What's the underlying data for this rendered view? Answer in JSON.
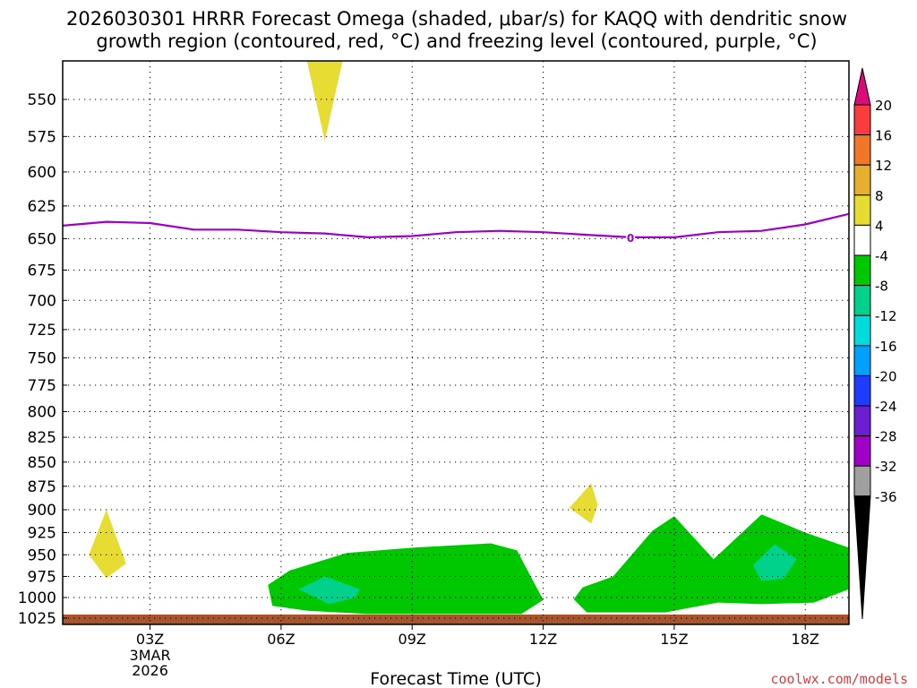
{
  "chart_data": {
    "type": "heatmap",
    "title_lines": [
      "2026030301 HRRR Forecast Omega (shaded, μbar/s) for KAQQ with dendritic snow",
      "growth region (contoured, red, °C) and freezing level (contoured, purple, °C)"
    ],
    "xlabel": "Forecast Time (UTC)",
    "credit": "coolwx.com/models",
    "x_range_hours": [
      1,
      19
    ],
    "x_ticks": [
      {
        "hour": 3,
        "label": "03Z",
        "sub": [
          "3MAR",
          "2026"
        ]
      },
      {
        "hour": 6,
        "label": "06Z"
      },
      {
        "hour": 9,
        "label": "09Z"
      },
      {
        "hour": 12,
        "label": "12Z"
      },
      {
        "hour": 15,
        "label": "15Z"
      },
      {
        "hour": 18,
        "label": "18Z"
      }
    ],
    "y_range_hpa": [
      1030,
      520
    ],
    "y_ticks": [
      550,
      575,
      600,
      625,
      650,
      675,
      700,
      725,
      750,
      775,
      800,
      825,
      850,
      875,
      900,
      925,
      950,
      975,
      1000,
      1025
    ],
    "freezing_level": {
      "color": "#9e00c8",
      "label": "0",
      "label_hour": 14,
      "points": [
        [
          1,
          640
        ],
        [
          2,
          637
        ],
        [
          3,
          638
        ],
        [
          4,
          643
        ],
        [
          5,
          643
        ],
        [
          6,
          645
        ],
        [
          7,
          646
        ],
        [
          8,
          649
        ],
        [
          9,
          648
        ],
        [
          10,
          645
        ],
        [
          11,
          644
        ],
        [
          12,
          645
        ],
        [
          13,
          647
        ],
        [
          14,
          649
        ],
        [
          15,
          649
        ],
        [
          16,
          645
        ],
        [
          17,
          644
        ],
        [
          18,
          639
        ],
        [
          19,
          631
        ]
      ]
    },
    "omega_regions": [
      {
        "value_class": "4 to 8",
        "color": "#e6dc32",
        "points": [
          [
            6.55,
            520
          ],
          [
            7.0,
            578
          ],
          [
            7.45,
            520
          ]
        ]
      },
      {
        "value_class": "4 to 8",
        "color": "#e6dc32",
        "points": [
          [
            2.0,
            900
          ],
          [
            1.6,
            950
          ],
          [
            2.0,
            977
          ],
          [
            2.45,
            960
          ]
        ]
      },
      {
        "value_class": "4 to 8",
        "color": "#e6dc32",
        "points": [
          [
            13.1,
            872
          ],
          [
            12.6,
            898
          ],
          [
            13.1,
            915
          ],
          [
            13.25,
            895
          ]
        ]
      },
      {
        "value_class": "-8 to -4",
        "color": "#00c800",
        "points": [
          [
            5.7,
            985
          ],
          [
            5.8,
            1010
          ],
          [
            6.6,
            1016
          ],
          [
            8.0,
            1020
          ],
          [
            11.5,
            1020
          ],
          [
            12.0,
            1003
          ],
          [
            11.4,
            945
          ],
          [
            10.8,
            937
          ],
          [
            9.0,
            942
          ],
          [
            7.5,
            948
          ],
          [
            6.2,
            968
          ]
        ]
      },
      {
        "value_class": "-8 to -4",
        "color": "#00c800",
        "points": [
          [
            12.7,
            1002
          ],
          [
            13.0,
            1018
          ],
          [
            14.8,
            1018
          ],
          [
            16.0,
            1006
          ],
          [
            17.0,
            1008
          ],
          [
            18.2,
            1006
          ],
          [
            19.0,
            990
          ],
          [
            19.0,
            942
          ],
          [
            18.0,
            925
          ],
          [
            17.0,
            905
          ],
          [
            15.9,
            955
          ],
          [
            15.0,
            907
          ],
          [
            14.5,
            923
          ],
          [
            13.6,
            975
          ],
          [
            12.9,
            988
          ]
        ]
      },
      {
        "value_class": "-12 to -8",
        "color": "#00d28c",
        "points": [
          [
            7.0,
            975
          ],
          [
            6.4,
            990
          ],
          [
            7.1,
            1008
          ],
          [
            7.7,
            1000
          ],
          [
            7.8,
            990
          ]
        ]
      },
      {
        "value_class": "-12 to -8",
        "color": "#00d28c",
        "points": [
          [
            16.8,
            962
          ],
          [
            17.0,
            980
          ],
          [
            17.5,
            978
          ],
          [
            17.8,
            955
          ],
          [
            17.3,
            938
          ]
        ]
      }
    ],
    "ground": {
      "color": "#a8552d",
      "pressure_hpa": 1025
    },
    "colorbar": {
      "labels": [
        "20",
        "16",
        "12",
        "8",
        "4",
        "-4",
        "-8",
        "-12",
        "-16",
        "-20",
        "-24",
        "-28",
        "-32",
        "-36"
      ],
      "top_arrow_color": "#dc0a78",
      "bottom_arrow_color": "#000000",
      "bins": [
        "#fa3c3c",
        "#f07828",
        "#e6af2d",
        "#e6dc32",
        "#ffffff",
        "#00c800",
        "#00d28c",
        "#00dcdc",
        "#00a0ff",
        "#1e3cff",
        "#6e1ed2",
        "#a000c8",
        "#a0a0a0"
      ]
    }
  }
}
